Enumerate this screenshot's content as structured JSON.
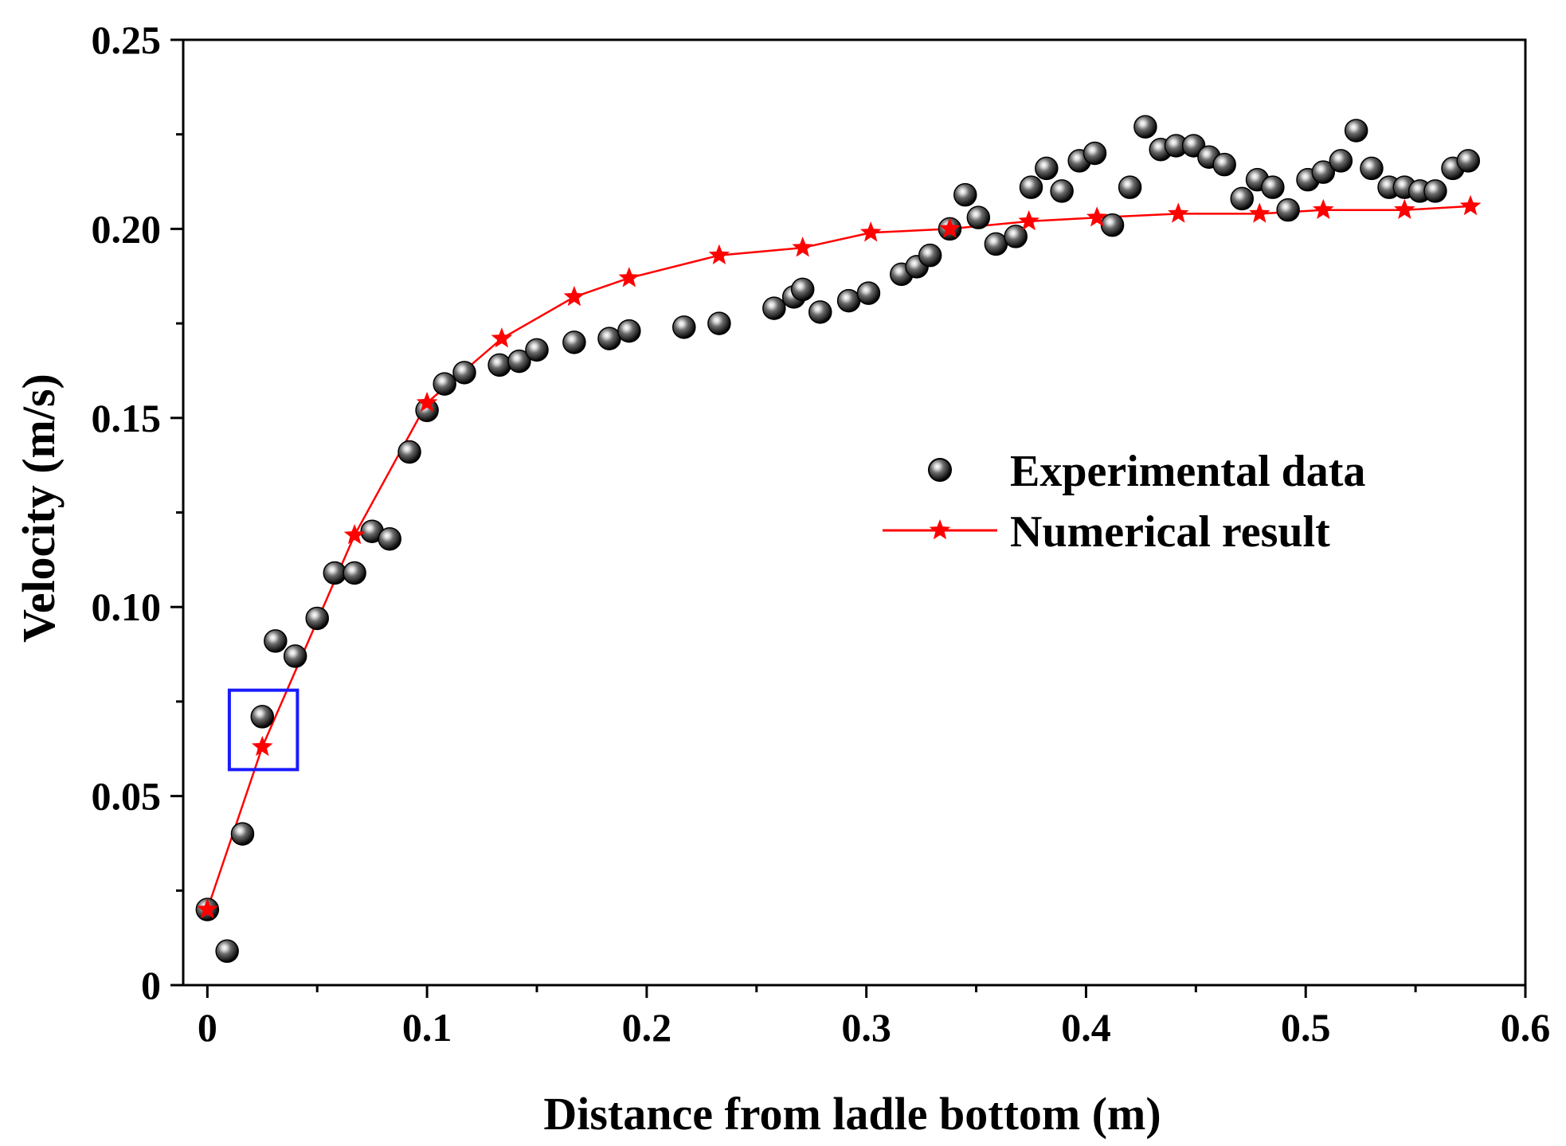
{
  "chart_data": {
    "type": "scatter",
    "title": "",
    "xlabel": "Distance from ladle bottom (m)",
    "ylabel": "Velocity (m/s)",
    "xlim": [
      -0.011,
      0.6
    ],
    "ylim": [
      0,
      0.25
    ],
    "x_ticks": [
      0,
      0.1,
      0.2,
      0.3,
      0.4,
      0.5,
      0.6
    ],
    "x_tick_labels": [
      "0",
      "0.1",
      "0.2",
      "0.3",
      "0.4",
      "0.5",
      "0.6"
    ],
    "y_ticks": [
      0,
      0.05,
      0.1,
      0.15,
      0.2,
      0.25
    ],
    "y_tick_labels": [
      "0",
      "0.05",
      "0.10",
      "0.15",
      "0.20",
      "0.25"
    ],
    "grid": false,
    "legend_position": "center-right",
    "highlight_box": {
      "x_range": [
        0.01,
        0.041
      ],
      "y_range": [
        0.057,
        0.078
      ],
      "color": "#1a1aff"
    },
    "series": [
      {
        "name": "Experimental data",
        "kind": "scatter",
        "marker": "sphere",
        "color": "#000000",
        "points": [
          [
            0,
            0.02
          ],
          [
            0.009,
            0.009
          ],
          [
            0.016,
            0.04
          ],
          [
            0.025,
            0.071
          ],
          [
            0.031,
            0.091
          ],
          [
            0.04,
            0.087
          ],
          [
            0.05,
            0.097
          ],
          [
            0.058,
            0.109
          ],
          [
            0.067,
            0.109
          ],
          [
            0.075,
            0.12
          ],
          [
            0.083,
            0.118
          ],
          [
            0.092,
            0.141
          ],
          [
            0.1,
            0.152
          ],
          [
            0.108,
            0.159
          ],
          [
            0.117,
            0.162
          ],
          [
            0.133,
            0.164
          ],
          [
            0.142,
            0.165
          ],
          [
            0.15,
            0.168
          ],
          [
            0.167,
            0.17
          ],
          [
            0.183,
            0.171
          ],
          [
            0.192,
            0.173
          ],
          [
            0.217,
            0.174
          ],
          [
            0.233,
            0.175
          ],
          [
            0.258,
            0.179
          ],
          [
            0.267,
            0.182
          ],
          [
            0.271,
            0.184
          ],
          [
            0.279,
            0.178
          ],
          [
            0.292,
            0.181
          ],
          [
            0.301,
            0.183
          ],
          [
            0.316,
            0.188
          ],
          [
            0.323,
            0.19
          ],
          [
            0.329,
            0.193
          ],
          [
            0.338,
            0.2
          ],
          [
            0.345,
            0.209
          ],
          [
            0.351,
            0.203
          ],
          [
            0.359,
            0.196
          ],
          [
            0.368,
            0.198
          ],
          [
            0.375,
            0.211
          ],
          [
            0.382,
            0.216
          ],
          [
            0.389,
            0.21
          ],
          [
            0.397,
            0.218
          ],
          [
            0.404,
            0.22
          ],
          [
            0.412,
            0.201
          ],
          [
            0.42,
            0.211
          ],
          [
            0.427,
            0.227
          ],
          [
            0.434,
            0.221
          ],
          [
            0.441,
            0.222
          ],
          [
            0.449,
            0.222
          ],
          [
            0.456,
            0.219
          ],
          [
            0.463,
            0.217
          ],
          [
            0.471,
            0.208
          ],
          [
            0.478,
            0.213
          ],
          [
            0.485,
            0.211
          ],
          [
            0.492,
            0.205
          ],
          [
            0.501,
            0.213
          ],
          [
            0.508,
            0.215
          ],
          [
            0.516,
            0.218
          ],
          [
            0.523,
            0.226
          ],
          [
            0.53,
            0.216
          ],
          [
            0.538,
            0.211
          ],
          [
            0.545,
            0.211
          ],
          [
            0.552,
            0.21
          ],
          [
            0.559,
            0.21
          ],
          [
            0.567,
            0.216
          ],
          [
            0.574,
            0.218
          ]
        ]
      },
      {
        "name": "Numerical result",
        "kind": "line",
        "marker": "star",
        "color": "#ff0000",
        "points": [
          [
            0,
            0.02
          ],
          [
            0.025,
            0.063
          ],
          [
            0.067,
            0.119
          ],
          [
            0.1,
            0.154
          ],
          [
            0.134,
            0.171
          ],
          [
            0.167,
            0.182
          ],
          [
            0.192,
            0.187
          ],
          [
            0.233,
            0.193
          ],
          [
            0.271,
            0.195
          ],
          [
            0.302,
            0.199
          ],
          [
            0.338,
            0.2
          ],
          [
            0.374,
            0.202
          ],
          [
            0.405,
            0.203
          ],
          [
            0.442,
            0.204
          ],
          [
            0.479,
            0.204
          ],
          [
            0.508,
            0.205
          ],
          [
            0.545,
            0.205
          ],
          [
            0.575,
            0.206
          ]
        ]
      }
    ]
  }
}
